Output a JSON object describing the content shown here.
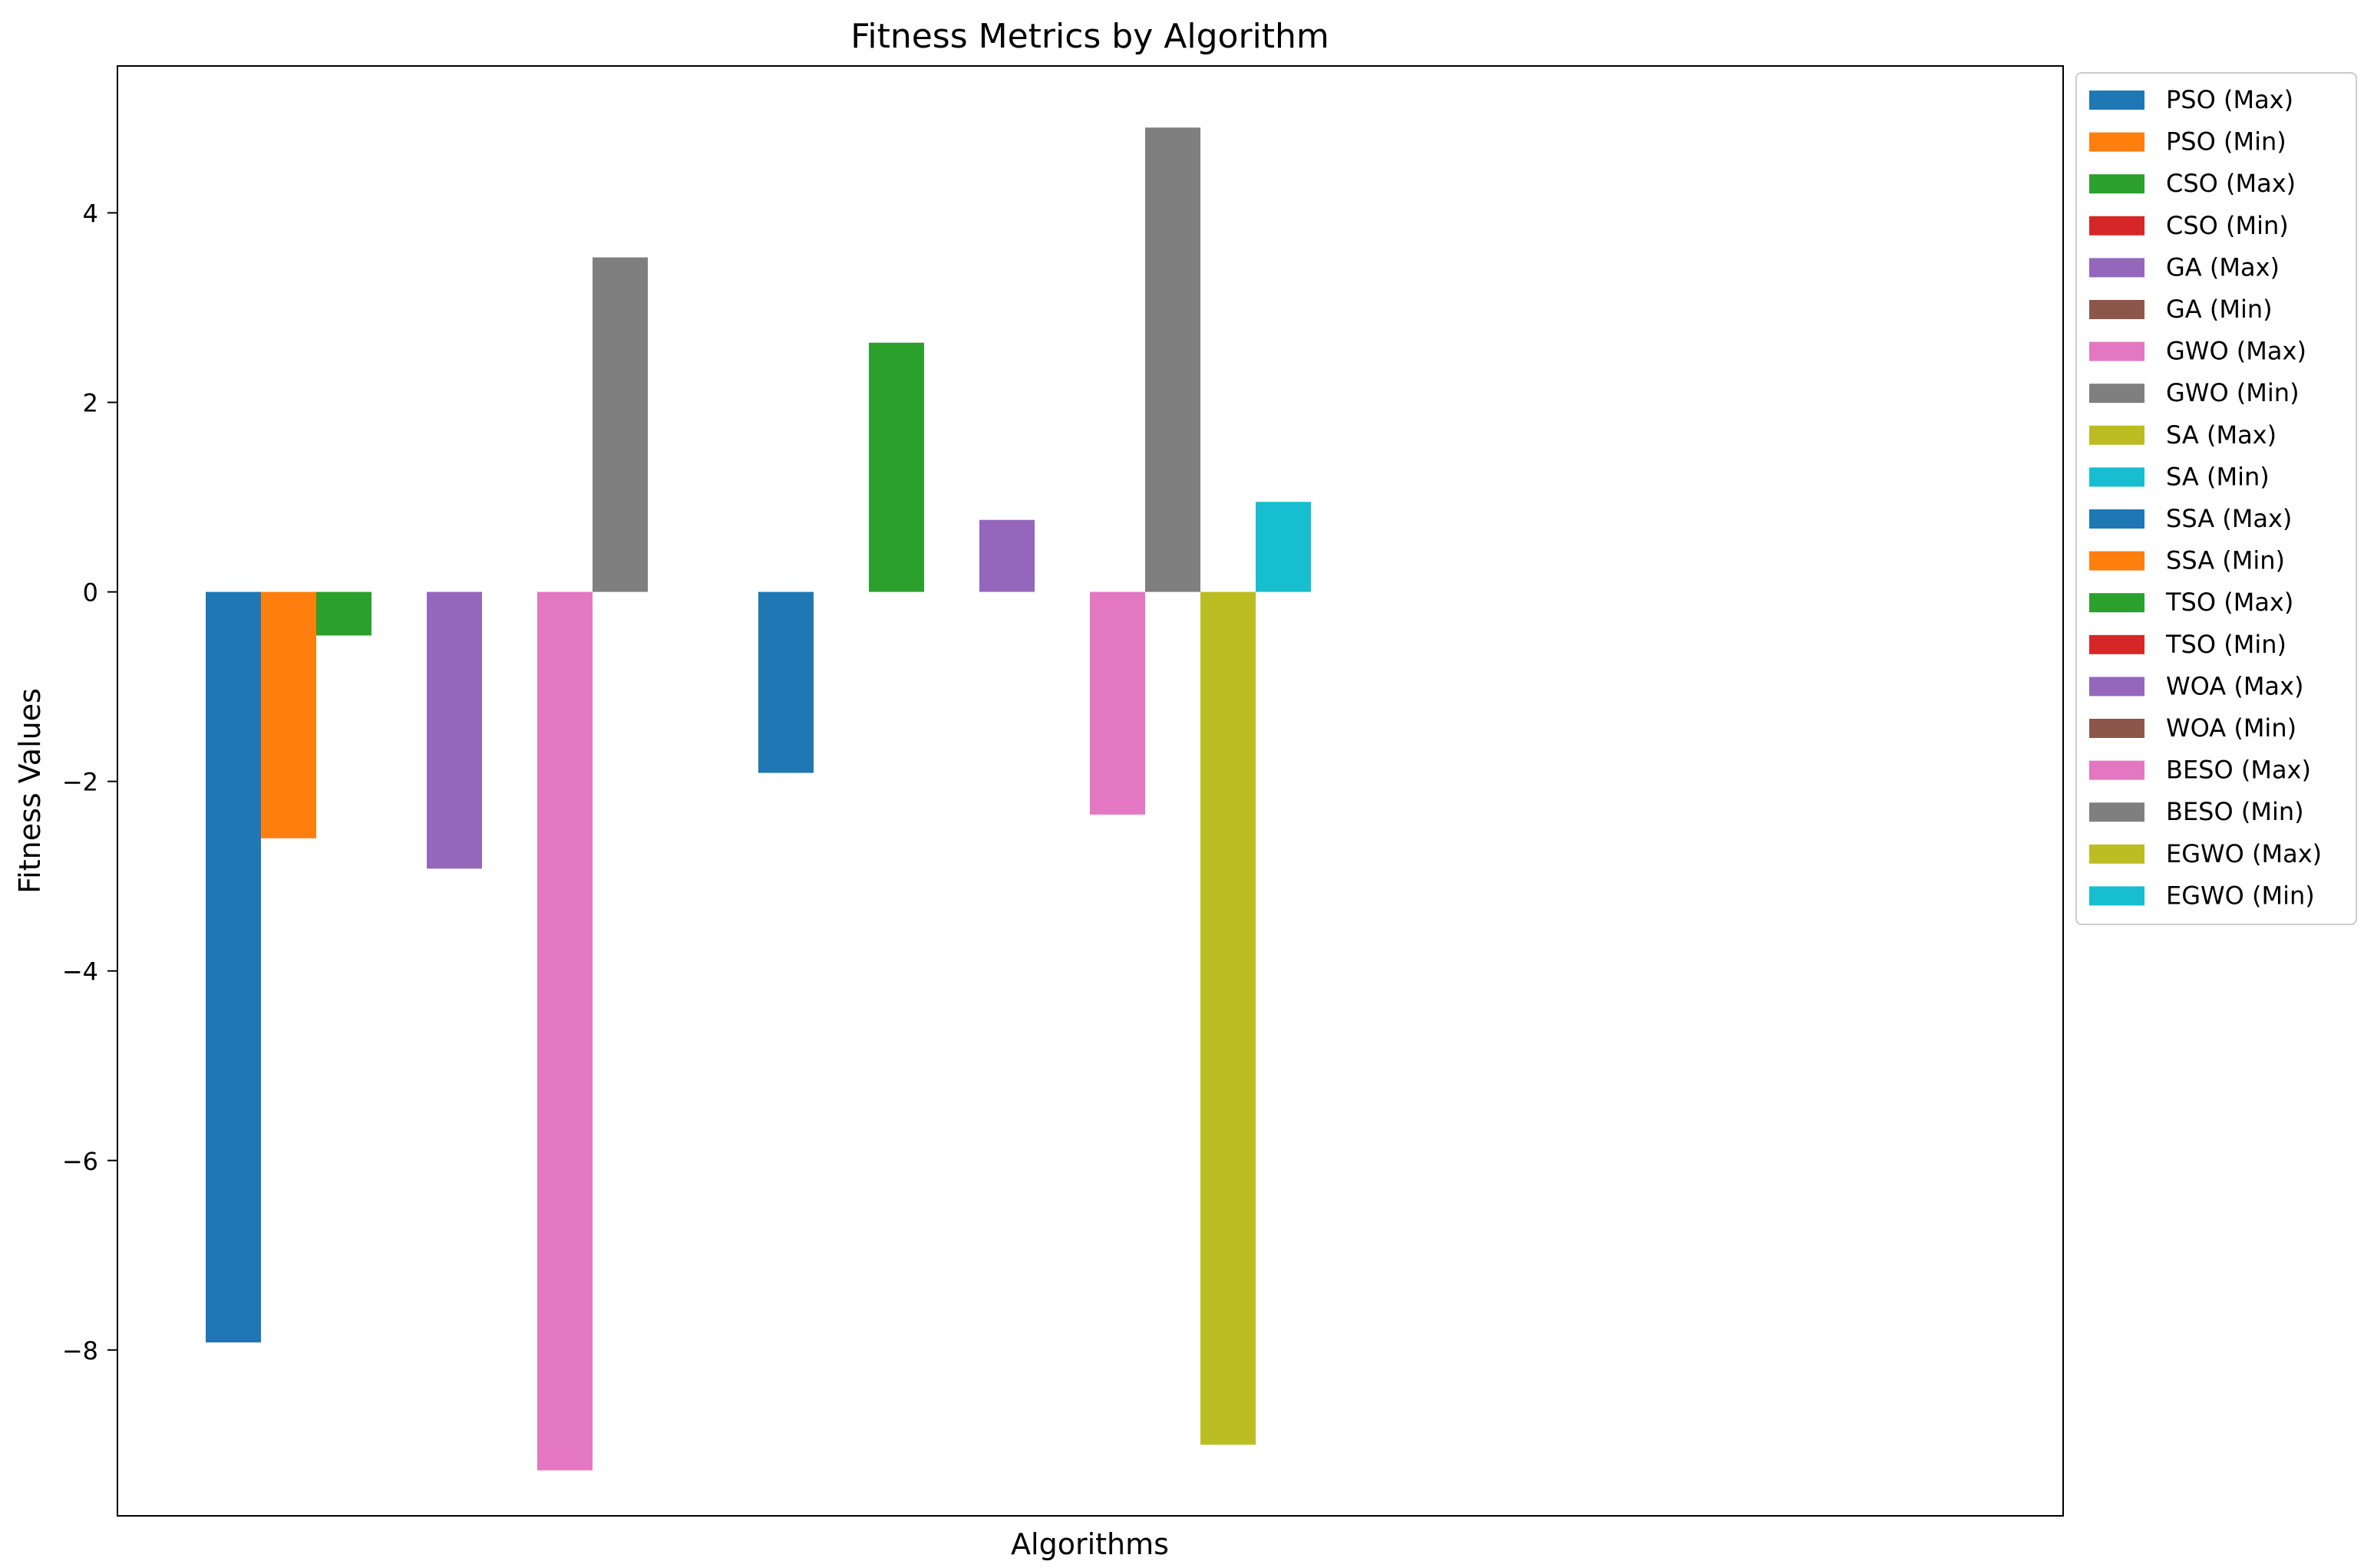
{
  "chart_data": {
    "type": "bar",
    "title": "Fitness Metrics by Algorithm",
    "xlabel": "Algorithms",
    "ylabel": "Fitness Values",
    "ylim": [
      -9.75,
      5.55
    ],
    "yticks": [
      4,
      2,
      0,
      -2,
      -4,
      -6,
      -8
    ],
    "ytick_labels": [
      "4",
      "2",
      "0",
      "−2",
      "−4",
      "−6",
      "−8"
    ],
    "grid": false,
    "legend_position": "outside-right",
    "series": [
      {
        "name": "PSO (Max)",
        "value": -7.92,
        "color": "#1f77b4"
      },
      {
        "name": "PSO (Min)",
        "value": -2.6,
        "color": "#ff7f0e"
      },
      {
        "name": "CSO (Max)",
        "value": -0.46,
        "color": "#2ca02c"
      },
      {
        "name": "CSO (Min)",
        "value": 0,
        "color": "#d62728"
      },
      {
        "name": "GA (Max)",
        "value": -2.92,
        "color": "#9467bd"
      },
      {
        "name": "GA (Min)",
        "value": 0,
        "color": "#8c564b"
      },
      {
        "name": "GWO (Max)",
        "value": -9.27,
        "color": "#e377c2"
      },
      {
        "name": "GWO (Min)",
        "value": 3.53,
        "color": "#7f7f7f"
      },
      {
        "name": "SA (Max)",
        "value": 0,
        "color": "#bcbd22"
      },
      {
        "name": "SA (Min)",
        "value": 0,
        "color": "#17becf"
      },
      {
        "name": "SSA (Max)",
        "value": -1.91,
        "color": "#1f77b4"
      },
      {
        "name": "SSA (Min)",
        "value": 0,
        "color": "#ff7f0e"
      },
      {
        "name": "TSO (Max)",
        "value": 2.63,
        "color": "#2ca02c"
      },
      {
        "name": "TSO (Min)",
        "value": 0,
        "color": "#d62728"
      },
      {
        "name": "WOA (Max)",
        "value": 0.76,
        "color": "#9467bd"
      },
      {
        "name": "WOA (Min)",
        "value": 0,
        "color": "#8c564b"
      },
      {
        "name": "BESO (Max)",
        "value": -2.35,
        "color": "#e377c2"
      },
      {
        "name": "BESO (Min)",
        "value": 4.9,
        "color": "#7f7f7f"
      },
      {
        "name": "EGWO (Max)",
        "value": -9.0,
        "color": "#bcbd22"
      },
      {
        "name": "EGWO (Min)",
        "value": 0.95,
        "color": "#17becf"
      }
    ]
  }
}
